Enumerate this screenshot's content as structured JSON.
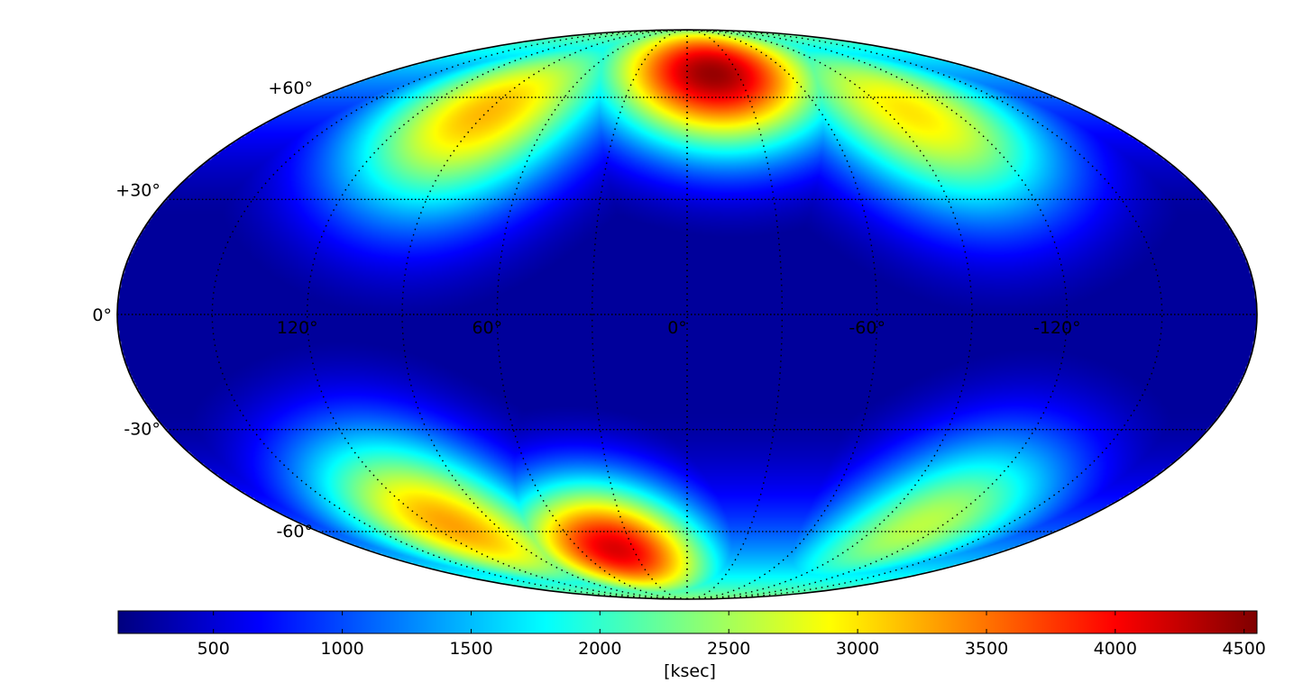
{
  "map": {
    "projection": "mollweide",
    "colormap": "jet",
    "latitude_labels": [
      {
        "lat": 60,
        "text": "+60°"
      },
      {
        "lat": 30,
        "text": "+30°"
      },
      {
        "lat": 0,
        "text": "0°"
      },
      {
        "lat": -30,
        "text": "-30°"
      },
      {
        "lat": -60,
        "text": "-60°"
      }
    ],
    "longitude_labels": [
      {
        "lon": 120,
        "text": "120°"
      },
      {
        "lon": 60,
        "text": "60°"
      },
      {
        "lon": 0,
        "text": "0°"
      },
      {
        "lon": -60,
        "text": "-60°"
      },
      {
        "lon": -120,
        "text": "-120°"
      }
    ],
    "graticule": {
      "parallels_deg": [
        -60,
        -30,
        0,
        30,
        60
      ],
      "meridian_step_deg": 30
    }
  },
  "colorbar": {
    "label": "[ksec]",
    "min": 130,
    "max": 4550,
    "ticks": [
      500,
      1000,
      1500,
      2000,
      2500,
      3000,
      3500,
      4000,
      4500
    ],
    "tick_labels": [
      "500",
      "1000",
      "1500",
      "2000",
      "2500",
      "3000",
      "3500",
      "4000",
      "4500"
    ]
  },
  "chart_data": {
    "type": "heatmap",
    "title": "",
    "quantity_label": "[ksec]",
    "value_range": [
      130,
      4550
    ],
    "projection": "mollweide",
    "features": [
      {
        "name": "north-polar-maximum",
        "lon": -15,
        "lat": 68,
        "value": 4450
      },
      {
        "name": "north-cap-ridge-east",
        "lon": 90,
        "lat": 55,
        "value": 3200
      },
      {
        "name": "north-cap-ridge-west",
        "lon": -100,
        "lat": 55,
        "value": 3000
      },
      {
        "name": "south-polar-maximum",
        "lon": 40,
        "lat": -66,
        "value": 4150
      },
      {
        "name": "south-cap-ridge-east",
        "lon": 110,
        "lat": -58,
        "value": 3300
      },
      {
        "name": "south-cap-west",
        "lon": -110,
        "lat": -58,
        "value": 2600
      },
      {
        "name": "equatorial-minimum",
        "lon": 0,
        "lat": 0,
        "value": 200
      }
    ]
  }
}
